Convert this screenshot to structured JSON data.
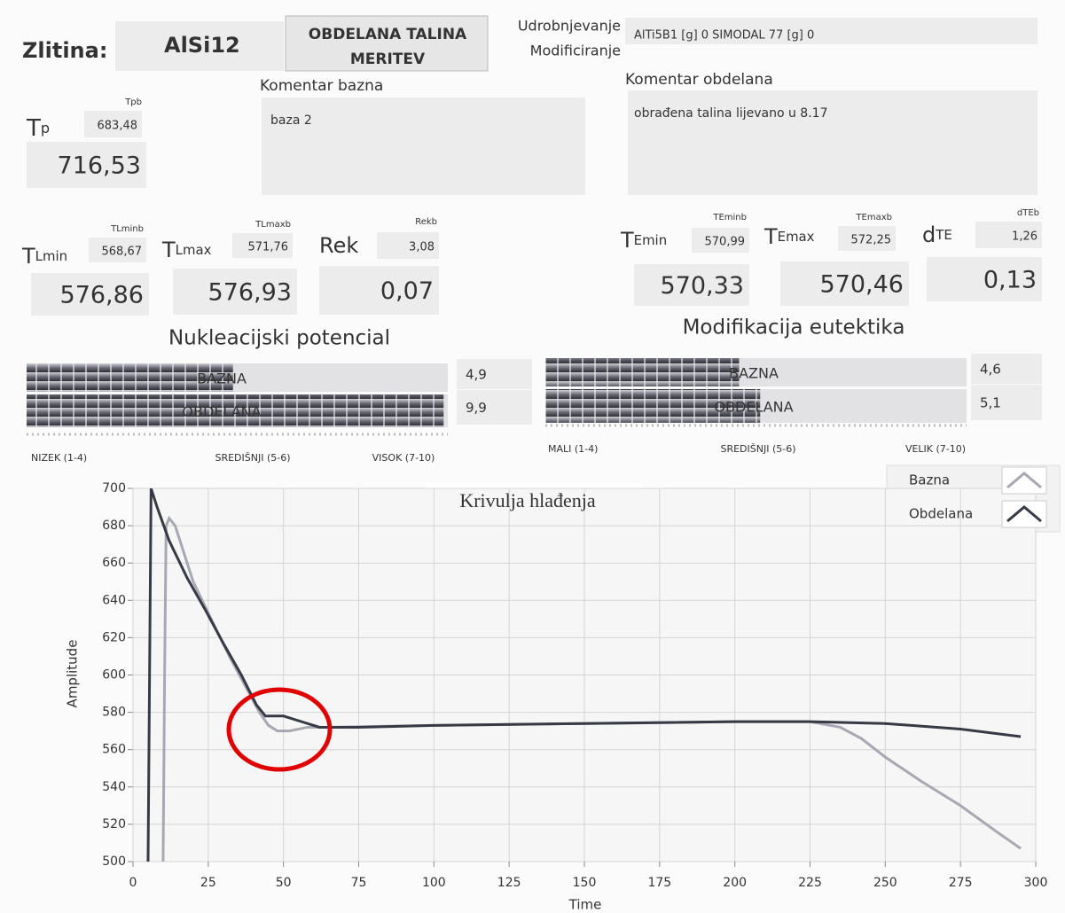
{
  "header": {
    "alloy_label": "Zlitina:",
    "alloy": "AlSi12",
    "button": [
      "OBDELANA TALINA",
      "MERITEV"
    ],
    "additive_labels": [
      "Udrobnjevanje",
      "Modificiranje"
    ],
    "additives": "AlTi5B1 [g] 0 SIMODAL 77 [g] 0"
  },
  "comments": [
    {
      "label": "Komentar bazna",
      "text": "baza 2"
    },
    {
      "label": "Komentar obdelana",
      "text": "obrađena talina lijevano u 8.17"
    }
  ],
  "measurements": [
    {
      "label": {
        "main": "T",
        "sub": "p"
      },
      "small_label": "Tpb",
      "small_value": "683,48",
      "value": "716,53"
    },
    {
      "label": {
        "main": "T",
        "sub": "Lmin"
      },
      "small_label": "TLminb",
      "small_value": "568,67",
      "value": "576,86"
    },
    {
      "label": {
        "main": "T",
        "sub": "Lmax"
      },
      "small_label": "TLmaxb",
      "small_value": "571,76",
      "value": "576,93"
    },
    {
      "label": {
        "main": "Rek"
      },
      "small_label": "Rekb",
      "small_value": "3,08",
      "value": "0,07"
    },
    {
      "label": {
        "main": "T",
        "sub": "Emin"
      },
      "small_label": "TEminb",
      "small_value": "570,99",
      "value": "570,33"
    },
    {
      "label": {
        "main": "T",
        "sub": "Emax"
      },
      "small_label": "TEmaxb",
      "small_value": "572,25",
      "value": "570,46"
    },
    {
      "label": {
        "main": "d",
        "sub": "TE"
      },
      "small_label": "dTEb",
      "small_value": "1,26",
      "value": "0,13"
    }
  ],
  "gauges": [
    {
      "title": "Nukleacijski potencial",
      "xlim": [
        0,
        10
      ],
      "bars": [
        {
          "name": "BAZNA",
          "value": 4.9,
          "value_label": "4,9"
        },
        {
          "name": "OBDELANA",
          "value": 9.9,
          "value_label": "9,9"
        }
      ],
      "scale_labels": [
        "NIZEK (1-4)",
        "SREDIŠNJI (5-6)",
        "VISOK (7-10)"
      ]
    },
    {
      "title": "Modifikacija eutektika",
      "xlim": [
        0,
        10
      ],
      "bars": [
        {
          "name": "BAZNA",
          "value": 4.6,
          "value_label": "4,6"
        },
        {
          "name": "OBDELANA",
          "value": 5.1,
          "value_label": "5,1"
        }
      ],
      "scale_labels": [
        "MALI (1-4)",
        "SREDIŠNJI (5-6)",
        "VELIK (7-10)"
      ]
    }
  ],
  "chart_data": {
    "type": "line",
    "title": "Krivulja hlađenja",
    "x_label": "Time",
    "y_label": "Amplitude",
    "xlim": [
      0,
      300
    ],
    "xticks": [
      0,
      25,
      50,
      75,
      100,
      125,
      150,
      175,
      200,
      225,
      250,
      275,
      300
    ],
    "ylim": [
      500,
      700
    ],
    "yticks": [
      500,
      520,
      540,
      560,
      580,
      600,
      620,
      640,
      660,
      680,
      700
    ],
    "grid": true,
    "legend": "top-right",
    "series": [
      {
        "name": "Bazna",
        "color": "#a8a8b2",
        "x": [
          10,
          10.5,
          11,
          12,
          14,
          20,
          26,
          32,
          38,
          42,
          45,
          48,
          52,
          58,
          65,
          100,
          150,
          200,
          225,
          235,
          242,
          250,
          262,
          275,
          287,
          295
        ],
        "values": [
          500,
          600,
          680,
          684,
          680,
          650,
          630,
          610,
          592,
          580,
          573,
          570,
          570,
          572,
          572,
          573,
          574,
          575,
          575,
          572,
          566,
          556,
          543,
          530,
          516,
          507
        ]
      },
      {
        "name": "Obdelana",
        "color": "#363a44",
        "x": [
          5,
          5.5,
          6,
          8,
          12,
          18,
          24,
          30,
          36,
          41,
          44,
          50,
          56,
          62,
          75,
          100,
          150,
          200,
          225,
          250,
          275,
          295
        ],
        "values": [
          500,
          600,
          700,
          690,
          672,
          652,
          635,
          617,
          600,
          584,
          578,
          578,
          575,
          572,
          572,
          573,
          574,
          575,
          575,
          574,
          571,
          567
        ]
      }
    ]
  }
}
